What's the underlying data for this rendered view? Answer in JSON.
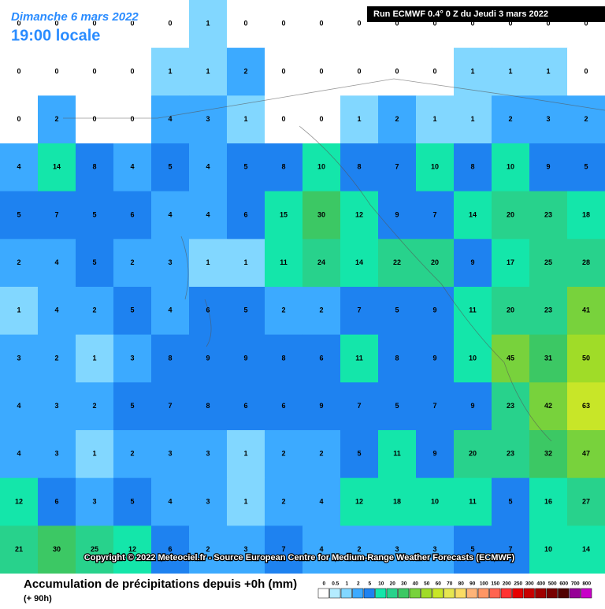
{
  "header": {
    "date": "Dimanche 6 mars 2022",
    "time": "19:00 locale",
    "run": "Run ECMWF 0.4° 0 Z du Jeudi 3 mars 2022"
  },
  "copyright": "Copyright © 2022 Meteociel.fr - Source European Centre for Medium-Range Weather Forecasts (ECMWF)",
  "legend": {
    "title": "Accumulation de précipitations depuis +0h (mm)",
    "subtitle": "(+ 90h)",
    "levels": [
      0,
      0.5,
      1,
      2,
      5,
      10,
      20,
      30,
      40,
      50,
      60,
      70,
      80,
      90,
      100,
      150,
      200,
      250,
      300,
      400,
      500,
      600,
      700,
      800
    ],
    "colors": [
      "#ffffff",
      "#b4ecff",
      "#82d7ff",
      "#3caaff",
      "#1e82f0",
      "#14e6aa",
      "#28d28c",
      "#3cc864",
      "#78d23c",
      "#a0dc28",
      "#c8e628",
      "#e6e650",
      "#fadc64",
      "#ffb478",
      "#ff9664",
      "#ff6450",
      "#ff3232",
      "#e60000",
      "#c80000",
      "#a00000",
      "#780000",
      "#500000",
      "#960096",
      "#c800c8"
    ]
  },
  "grid": {
    "rows": [
      [
        0,
        0,
        0,
        0,
        0,
        1,
        0,
        0,
        0,
        0,
        0,
        0,
        0,
        0,
        0,
        0
      ],
      [
        0,
        0,
        0,
        0,
        1,
        1,
        2,
        0,
        0,
        0,
        0,
        0,
        1,
        1,
        1,
        0
      ],
      [
        0,
        2,
        0,
        0,
        4,
        3,
        1,
        0,
        0,
        1,
        2,
        1,
        1,
        2,
        3,
        2
      ],
      [
        4,
        14,
        8,
        4,
        5,
        4,
        5,
        8,
        10,
        8,
        7,
        10,
        8,
        10,
        9,
        5
      ],
      [
        5,
        7,
        5,
        6,
        4,
        4,
        6,
        15,
        30,
        12,
        9,
        7,
        14,
        20,
        23,
        18
      ],
      [
        2,
        4,
        5,
        2,
        3,
        1,
        1,
        11,
        24,
        14,
        22,
        20,
        9,
        17,
        25,
        28
      ],
      [
        1,
        4,
        2,
        5,
        4,
        6,
        5,
        2,
        2,
        7,
        5,
        9,
        11,
        20,
        23,
        41
      ],
      [
        3,
        2,
        1,
        3,
        8,
        9,
        9,
        8,
        6,
        11,
        8,
        9,
        10,
        45,
        31,
        50
      ],
      [
        4,
        3,
        2,
        5,
        7,
        8,
        6,
        6,
        9,
        7,
        5,
        7,
        9,
        23,
        42,
        63
      ],
      [
        4,
        3,
        1,
        2,
        3,
        3,
        1,
        2,
        2,
        5,
        11,
        9,
        20,
        23,
        32,
        47
      ],
      [
        12,
        6,
        3,
        5,
        4,
        3,
        1,
        2,
        4,
        12,
        18,
        10,
        11,
        5,
        16,
        27
      ],
      [
        21,
        30,
        25,
        12,
        6,
        2,
        3,
        7,
        4,
        2,
        3,
        3,
        5,
        7,
        10,
        14
      ]
    ]
  }
}
